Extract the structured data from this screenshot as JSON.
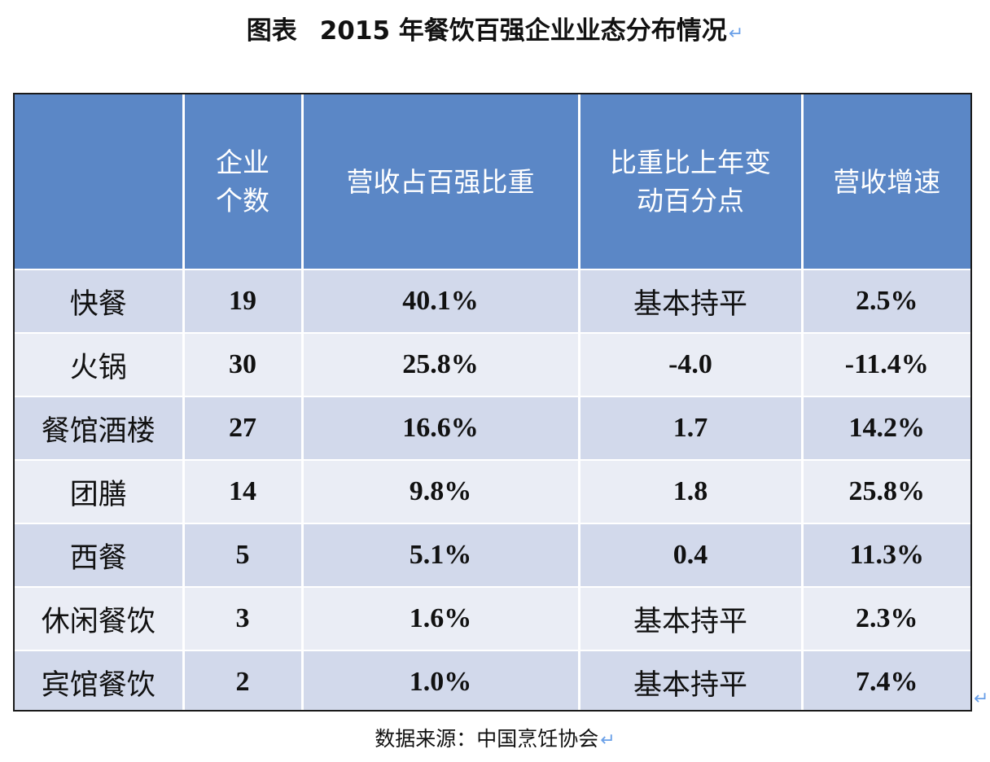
{
  "title": {
    "prefix": "图表",
    "text": "2015 年餐饮百强企业业态分布情况"
  },
  "paragraph_mark": "↵",
  "table": {
    "headers": [
      "",
      "企业\n个数",
      "营收占百强比重",
      "比重比上年变\n动百分点",
      "营收增速"
    ],
    "rows": [
      [
        "快餐",
        "19",
        "40.1%",
        "基本持平",
        "2.5%"
      ],
      [
        "火锅",
        "30",
        "25.8%",
        "-4.0",
        "-11.4%"
      ],
      [
        "餐馆酒楼",
        "27",
        "16.6%",
        "1.7",
        "14.2%"
      ],
      [
        "团膳",
        "14",
        "9.8%",
        "1.8",
        "25.8%"
      ],
      [
        "西餐",
        "5",
        "5.1%",
        "0.4",
        "11.3%"
      ],
      [
        "休闲餐饮",
        "3",
        "1.6%",
        "基本持平",
        "2.3%"
      ],
      [
        "宾馆餐饮",
        "2",
        "1.0%",
        "基本持平",
        "7.4%"
      ]
    ]
  },
  "source": "数据来源：中国烹饪协会",
  "colors": {
    "header_bg": "#5b87c6",
    "row_odd_bg": "#d2d9eb",
    "row_even_bg": "#eaedf5",
    "paragraph_mark": "#6aa0e8"
  }
}
